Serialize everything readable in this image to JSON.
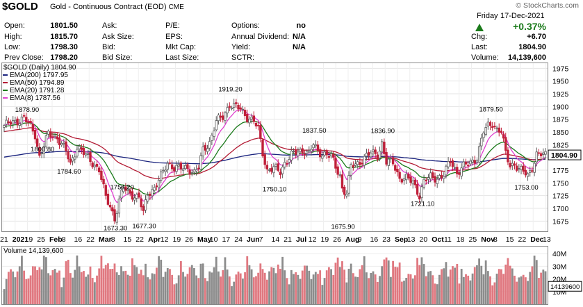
{
  "header": {
    "symbol": "$GOLD",
    "description": "Gold - Continuous Contract (EOD)",
    "exchange": "CME",
    "watermark": "© StockCharts.com"
  },
  "quote": {
    "cols": [
      [
        {
          "label": "Open:",
          "value": "1801.50"
        },
        {
          "label": "High:",
          "value": "1815.70"
        },
        {
          "label": "Low:",
          "value": "1798.30"
        },
        {
          "label": "Prev Close:",
          "value": "1798.20"
        }
      ],
      [
        {
          "label": "Ask:",
          "value": ""
        },
        {
          "label": "Ask Size:",
          "value": ""
        },
        {
          "label": "Bid:",
          "value": ""
        },
        {
          "label": "Bid Size:",
          "value": ""
        }
      ],
      [
        {
          "label": "P/E:",
          "value": ""
        },
        {
          "label": "EPS:",
          "value": ""
        },
        {
          "label": "Mkt Cap:",
          "value": ""
        },
        {
          "label": "Last Size:",
          "value": ""
        }
      ],
      [
        {
          "label": "Options:",
          "value": "no"
        },
        {
          "label": "Annual Dividend:",
          "value": "N/A"
        },
        {
          "label": "Yield:",
          "value": "N/A"
        },
        {
          "label": "SCTR:",
          "value": ""
        }
      ]
    ],
    "day": "Friday",
    "date": "17-Dec-2021",
    "change_pct": "+0.37%",
    "right": [
      {
        "label": "Chg:",
        "value": "+6.70"
      },
      {
        "label": "Last:",
        "value": "1804.90"
      },
      {
        "label": "Volume:",
        "value": "14,139,600"
      }
    ]
  },
  "colors": {
    "up": "#5a5a5a",
    "down": "#c0203a",
    "ema200": "#1a237e",
    "ema50": "#b31b34",
    "ema20": "#1b7a1b",
    "ema8": "#e040d0",
    "vol_up": "#8c8c8c",
    "vol_down": "#e07880"
  },
  "chart_data": [
    {
      "type": "candlestick",
      "legend": [
        {
          "label": "$GOLD (Daily) 1804.90",
          "color": "#000000"
        },
        {
          "label": "EMA(200) 1797.95",
          "color": "#1a237e"
        },
        {
          "label": "EMA(50) 1794.89",
          "color": "#b31b34"
        },
        {
          "label": "EMA(20) 1791.28",
          "color": "#1b7a1b"
        },
        {
          "label": "EMA(8) 1787.56",
          "color": "#e040d0"
        }
      ],
      "x_ticks": [
        "21",
        "2021",
        "19",
        "25",
        "Feb",
        "8",
        "16",
        "22",
        "Mar",
        "8",
        "15",
        "22",
        "Apr",
        "12",
        "19",
        "26",
        "May",
        "10",
        "17",
        "24",
        "Jun",
        "7",
        "14",
        "21",
        "Jul",
        "12",
        "19",
        "26",
        "Aug",
        "9",
        "16",
        "23",
        "Sep",
        "13",
        "20",
        "Oct",
        "11",
        "18",
        "25",
        "Nov",
        "8",
        "15",
        "22",
        "Dec",
        "13"
      ],
      "y_ticks": [
        1675,
        1700,
        1725,
        1750,
        1775,
        1800,
        1825,
        1850,
        1875,
        1900,
        1925,
        1950,
        1975
      ],
      "ylim": [
        1655,
        1985
      ],
      "last_price_label": "1804.90",
      "annotations": [
        {
          "text": "1878.90",
          "day": 10,
          "price": 1878.9
        },
        {
          "text": "1800.80",
          "day": 17,
          "price": 1800.8
        },
        {
          "text": "1784.60",
          "day": 29,
          "price": 1784.6
        },
        {
          "text": "1673.30",
          "day": 50,
          "price": 1673.3
        },
        {
          "text": "1754.20",
          "day": 53,
          "price": 1754.2
        },
        {
          "text": "1677.30",
          "day": 63,
          "price": 1677.3
        },
        {
          "text": "1919.20",
          "day": 102,
          "price": 1919.2
        },
        {
          "text": "1750.10",
          "day": 122,
          "price": 1750.1
        },
        {
          "text": "1837.50",
          "day": 140,
          "price": 1837.5
        },
        {
          "text": "1675.90",
          "day": 153,
          "price": 1675.9
        },
        {
          "text": "1836.90",
          "day": 171,
          "price": 1836.9
        },
        {
          "text": "1721.10",
          "day": 189,
          "price": 1721.1
        },
        {
          "text": "1879.50",
          "day": 220,
          "price": 1879.5
        },
        {
          "text": "1753.00",
          "day": 236,
          "price": 1753.0
        }
      ],
      "close_path": [
        [
          0,
          1863
        ],
        [
          5,
          1870
        ],
        [
          9,
          1878
        ],
        [
          12,
          1860
        ],
        [
          14,
          1845
        ],
        [
          16,
          1802
        ],
        [
          20,
          1845
        ],
        [
          24,
          1840
        ],
        [
          28,
          1812
        ],
        [
          30,
          1786
        ],
        [
          33,
          1822
        ],
        [
          36,
          1808
        ],
        [
          40,
          1790
        ],
        [
          43,
          1776
        ],
        [
          46,
          1720
        ],
        [
          48,
          1705
        ],
        [
          50,
          1680
        ],
        [
          52,
          1715
        ],
        [
          54,
          1740
        ],
        [
          57,
          1730
        ],
        [
          61,
          1720
        ],
        [
          63,
          1690
        ],
        [
          65,
          1730
        ],
        [
          68,
          1740
        ],
        [
          71,
          1762
        ],
        [
          74,
          1790
        ],
        [
          77,
          1780
        ],
        [
          80,
          1778
        ],
        [
          83,
          1780
        ],
        [
          86,
          1770
        ],
        [
          88,
          1780
        ],
        [
          90,
          1815
        ],
        [
          93,
          1830
        ],
        [
          96,
          1870
        ],
        [
          99,
          1880
        ],
        [
          102,
          1905
        ],
        [
          104,
          1900
        ],
        [
          107,
          1895
        ],
        [
          110,
          1880
        ],
        [
          113,
          1870
        ],
        [
          115,
          1855
        ],
        [
          117,
          1810
        ],
        [
          119,
          1775
        ],
        [
          122,
          1778
        ],
        [
          125,
          1772
        ],
        [
          127,
          1790
        ],
        [
          130,
          1805
        ],
        [
          133,
          1810
        ],
        [
          136,
          1815
        ],
        [
          138,
          1808
        ],
        [
          140,
          1825
        ],
        [
          142,
          1810
        ],
        [
          145,
          1808
        ],
        [
          148,
          1802
        ],
        [
          150,
          1780
        ],
        [
          152,
          1765
        ],
        [
          153,
          1740
        ],
        [
          155,
          1730
        ],
        [
          157,
          1782
        ],
        [
          160,
          1788
        ],
        [
          163,
          1800
        ],
        [
          166,
          1808
        ],
        [
          169,
          1805
        ],
        [
          171,
          1828
        ],
        [
          173,
          1790
        ],
        [
          176,
          1790
        ],
        [
          179,
          1760
        ],
        [
          182,
          1758
        ],
        [
          185,
          1752
        ],
        [
          188,
          1726
        ],
        [
          190,
          1752
        ],
        [
          193,
          1762
        ],
        [
          196,
          1760
        ],
        [
          199,
          1765
        ],
        [
          202,
          1795
        ],
        [
          205,
          1770
        ],
        [
          208,
          1782
        ],
        [
          211,
          1790
        ],
        [
          214,
          1800
        ],
        [
          217,
          1850
        ],
        [
          219,
          1862
        ],
        [
          221,
          1868
        ],
        [
          223,
          1855
        ],
        [
          225,
          1850
        ],
        [
          227,
          1808
        ],
        [
          229,
          1785
        ],
        [
          231,
          1788
        ],
        [
          233,
          1775
        ],
        [
          235,
          1772
        ],
        [
          237,
          1765
        ],
        [
          239,
          1782
        ],
        [
          241,
          1805
        ]
      ],
      "volume": {
        "label": "Volume 14,139,600",
        "y_ticks": [
          "40M",
          "30M",
          "20M",
          "10M"
        ],
        "last_label": "14139600",
        "ylim_millions": [
          0,
          45
        ]
      }
    }
  ]
}
